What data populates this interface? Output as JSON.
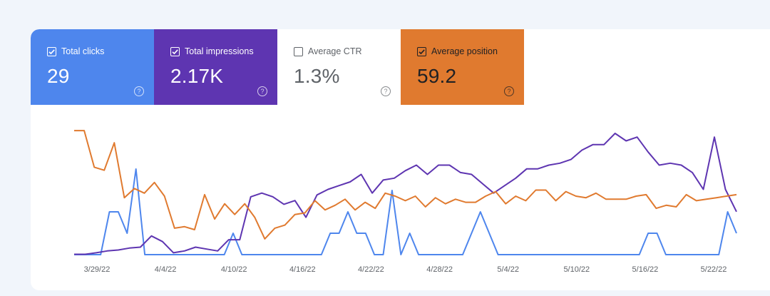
{
  "metrics": [
    {
      "label": "Total clicks",
      "value": "29",
      "checked": true,
      "bg": "#4e86ed",
      "fg": "#ffffff"
    },
    {
      "label": "Total impressions",
      "value": "2.17K",
      "checked": true,
      "bg": "#5e35b1",
      "fg": "#ffffff"
    },
    {
      "label": "Average CTR",
      "value": "1.3%",
      "checked": false,
      "bg": "#ffffff",
      "fg": "#5f6368"
    },
    {
      "label": "Average position",
      "value": "59.2",
      "checked": true,
      "bg": "#e07a2f",
      "fg": "#202124"
    }
  ],
  "icons": {
    "checkbox": "checkbox-icon",
    "help": "help-circle-icon"
  },
  "chart_data": {
    "type": "line",
    "x_tick_labels": [
      "3/29/22",
      "4/4/22",
      "4/10/22",
      "4/16/22",
      "4/22/22",
      "4/28/22",
      "5/4/22",
      "5/10/22",
      "5/16/22",
      "5/22/22"
    ],
    "x_range": [
      "3/27/22",
      "5/24/22"
    ],
    "grid": false,
    "legend": "metric tiles above chart",
    "y_axis_visible": false,
    "series": [
      {
        "name": "Total clicks",
        "color": "#4e86ed",
        "values": [
          0,
          0,
          0,
          0,
          2,
          2,
          1,
          4,
          0,
          0,
          0,
          0,
          0,
          0,
          0,
          0,
          0,
          0,
          1,
          0,
          0,
          0,
          0,
          0,
          0,
          0,
          0,
          0,
          0,
          1,
          1,
          2,
          1,
          1,
          0,
          0,
          3,
          0,
          1,
          0,
          0,
          0,
          0,
          0,
          0,
          1,
          2,
          1,
          0,
          0,
          0,
          0,
          0,
          0,
          0,
          0,
          0,
          0,
          0,
          0,
          0,
          0,
          0,
          0,
          0,
          1,
          1,
          0,
          0,
          0,
          0,
          0,
          0,
          0,
          2,
          1
        ]
      },
      {
        "name": "Total impressions",
        "color": "#5e35b1",
        "values": [
          0.2,
          0.2,
          1,
          2,
          2.5,
          3.5,
          4,
          10,
          7,
          1,
          2,
          4,
          3,
          2,
          8,
          8,
          31,
          33,
          31,
          27,
          29,
          20,
          32,
          35,
          37,
          39,
          43,
          33,
          40,
          41,
          45,
          48,
          43,
          48,
          48,
          44,
          43,
          38,
          33,
          37,
          41,
          46,
          46,
          48,
          49,
          51,
          56,
          59,
          59,
          65,
          61,
          63,
          55,
          48,
          49,
          48,
          44,
          35,
          63,
          35,
          23
        ]
      },
      {
        "name": "Average position",
        "color": "#e07a2f",
        "values": [
          6,
          6,
          30,
          32,
          14,
          50,
          44,
          47,
          40,
          49,
          70,
          69,
          71,
          48,
          64,
          54,
          61,
          54,
          63,
          77,
          70,
          68,
          61,
          60,
          52,
          58,
          55,
          51,
          58,
          53,
          57,
          47,
          49,
          52,
          49,
          56,
          50,
          54,
          51,
          53,
          53,
          49,
          46,
          54,
          49,
          52,
          45,
          45,
          52,
          46,
          49,
          50,
          47,
          51,
          51,
          51,
          49,
          48,
          57,
          55,
          56,
          48,
          52,
          51,
          50,
          49,
          48
        ]
      }
    ]
  }
}
